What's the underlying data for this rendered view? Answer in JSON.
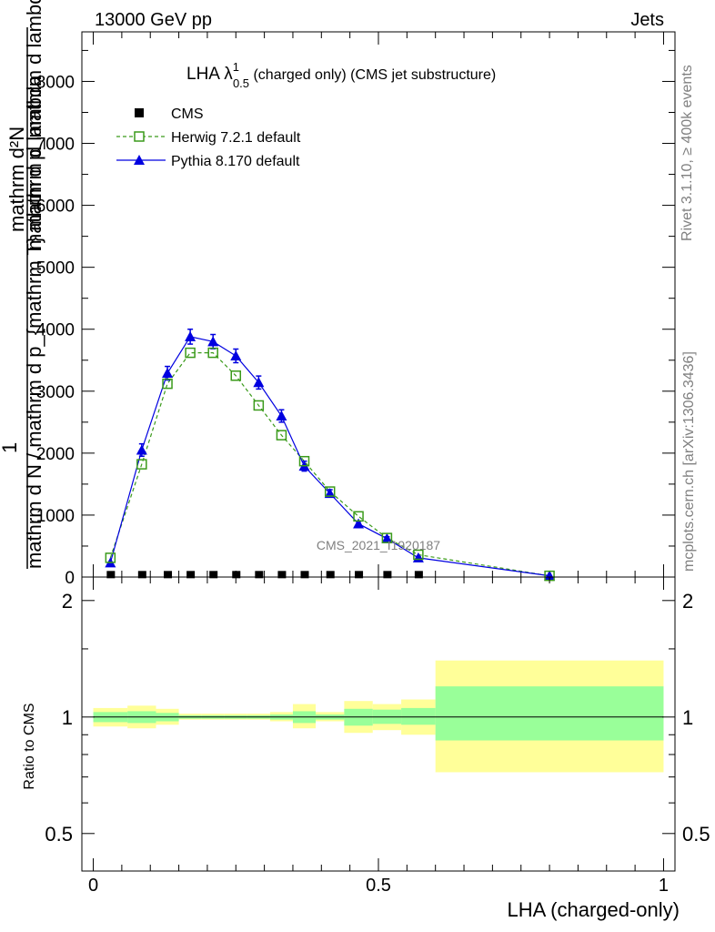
{
  "header": {
    "left": "13000 GeV pp",
    "right": "Jets"
  },
  "side_text": {
    "rivet": "Rivet 3.1.10, ≥ 400k events",
    "mcplots": "mcplots.cern.ch [arXiv:1306.3436]"
  },
  "title": {
    "prefix": "LHA λ",
    "sup": "1",
    "sub": "0.5",
    "suffix": " (charged only) (CMS jet substructure)"
  },
  "watermark": "CMS_2021_I1920187",
  "ylabel_main": {
    "numerator": "mathrm d²N",
    "one": "1",
    "denominator": "mathrm d N / mathrm d p_{mathrm T} mathrm d lambda",
    "garbled": "mathrm d p_mathrm d lambda"
  },
  "ylabel_ratio": "Ratio to CMS",
  "xlabel": "LHA (charged-only)",
  "legend": [
    {
      "label": "CMS",
      "marker": "square-filled",
      "color": "#000000"
    },
    {
      "label": "Herwig 7.2.1 default",
      "marker": "square-open",
      "color": "#3a9a1a"
    },
    {
      "label": "Pythia 8.170 default",
      "marker": "triangle-filled",
      "color": "#0000e0"
    }
  ],
  "chart_data": [
    {
      "type": "line",
      "title": "LHA λ^1_0.5 (charged only) (CMS jet substructure)",
      "xlim": [
        -0.02,
        1.02
      ],
      "ylim": [
        0,
        8800
      ],
      "x_ticks": [
        0,
        0.5,
        1
      ],
      "y_ticks": [
        0,
        1000,
        2000,
        3000,
        4000,
        5000,
        6000,
        7000,
        8000
      ],
      "y_tick_labels": [
        "0",
        "1000",
        "2000",
        "3000",
        "4000",
        "5000",
        "6000",
        "7000",
        "8000"
      ],
      "series": [
        {
          "name": "CMS",
          "x": [
            0.03,
            0.085,
            0.13,
            0.17,
            0.21,
            0.25,
            0.29,
            0.33,
            0.37,
            0.415,
            0.465,
            0.515,
            0.57
          ],
          "y": [
            10,
            10,
            10,
            10,
            10,
            10,
            10,
            10,
            10,
            10,
            10,
            10,
            10
          ]
        },
        {
          "name": "Herwig 7.2.1 default",
          "x": [
            0.03,
            0.085,
            0.13,
            0.17,
            0.21,
            0.25,
            0.29,
            0.33,
            0.37,
            0.415,
            0.465,
            0.515,
            0.57,
            0.8
          ],
          "y": [
            310,
            1820,
            3120,
            3620,
            3620,
            3250,
            2770,
            2290,
            1870,
            1380,
            980,
            630,
            360,
            20
          ]
        },
        {
          "name": "Pythia 8.170 default",
          "x": [
            0.03,
            0.085,
            0.13,
            0.17,
            0.21,
            0.25,
            0.29,
            0.33,
            0.37,
            0.415,
            0.465,
            0.515,
            0.57,
            0.8
          ],
          "y": [
            230,
            2050,
            3290,
            3880,
            3800,
            3570,
            3140,
            2600,
            1790,
            1350,
            860,
            620,
            310,
            20
          ],
          "err": [
            0,
            100,
            110,
            120,
            115,
            110,
            105,
            100,
            80,
            60,
            40,
            30,
            20,
            0
          ]
        }
      ]
    },
    {
      "type": "area",
      "ylabel": "Ratio to CMS",
      "xlabel": "LHA (charged-only)",
      "xlim": [
        -0.02,
        1.02
      ],
      "ylim": [
        0.4,
        2.3
      ],
      "y_scale": "log",
      "y_ticks": [
        0.5,
        1,
        2
      ],
      "y_tick_labels": [
        "0.5",
        "1",
        "2"
      ],
      "x_ticks": [
        0,
        0.5,
        1
      ],
      "x_tick_labels": [
        "0",
        "0.5",
        "1"
      ],
      "bins": [
        {
          "x0": 0.0,
          "x1": 0.06,
          "inner": [
            0.97,
            1.03
          ],
          "outer": [
            0.945,
            1.055
          ]
        },
        {
          "x0": 0.06,
          "x1": 0.11,
          "inner": [
            0.965,
            1.035
          ],
          "outer": [
            0.935,
            1.07
          ]
        },
        {
          "x0": 0.11,
          "x1": 0.15,
          "inner": [
            0.975,
            1.025
          ],
          "outer": [
            0.955,
            1.05
          ]
        },
        {
          "x0": 0.15,
          "x1": 0.19,
          "inner": [
            0.99,
            1.01
          ],
          "outer": [
            0.985,
            1.02
          ]
        },
        {
          "x0": 0.19,
          "x1": 0.23,
          "inner": [
            0.99,
            1.01
          ],
          "outer": [
            0.985,
            1.02
          ]
        },
        {
          "x0": 0.23,
          "x1": 0.27,
          "inner": [
            0.99,
            1.01
          ],
          "outer": [
            0.985,
            1.02
          ]
        },
        {
          "x0": 0.27,
          "x1": 0.31,
          "inner": [
            0.99,
            1.01
          ],
          "outer": [
            0.985,
            1.02
          ]
        },
        {
          "x0": 0.31,
          "x1": 0.35,
          "inner": [
            0.985,
            1.015
          ],
          "outer": [
            0.975,
            1.03
          ]
        },
        {
          "x0": 0.35,
          "x1": 0.39,
          "inner": [
            0.965,
            1.035
          ],
          "outer": [
            0.935,
            1.08
          ]
        },
        {
          "x0": 0.39,
          "x1": 0.44,
          "inner": [
            0.985,
            1.015
          ],
          "outer": [
            0.975,
            1.03
          ]
        },
        {
          "x0": 0.44,
          "x1": 0.49,
          "inner": [
            0.95,
            1.05
          ],
          "outer": [
            0.91,
            1.1
          ]
        },
        {
          "x0": 0.49,
          "x1": 0.54,
          "inner": [
            0.96,
            1.045
          ],
          "outer": [
            0.925,
            1.08
          ]
        },
        {
          "x0": 0.54,
          "x1": 0.6,
          "inner": [
            0.955,
            1.055
          ],
          "outer": [
            0.9,
            1.11
          ]
        },
        {
          "x0": 0.6,
          "x1": 1.0,
          "inner": [
            0.87,
            1.2
          ],
          "outer": [
            0.72,
            1.4
          ]
        }
      ],
      "band_colors": {
        "outer": "#ffff99",
        "inner": "#99ff99"
      }
    }
  ]
}
